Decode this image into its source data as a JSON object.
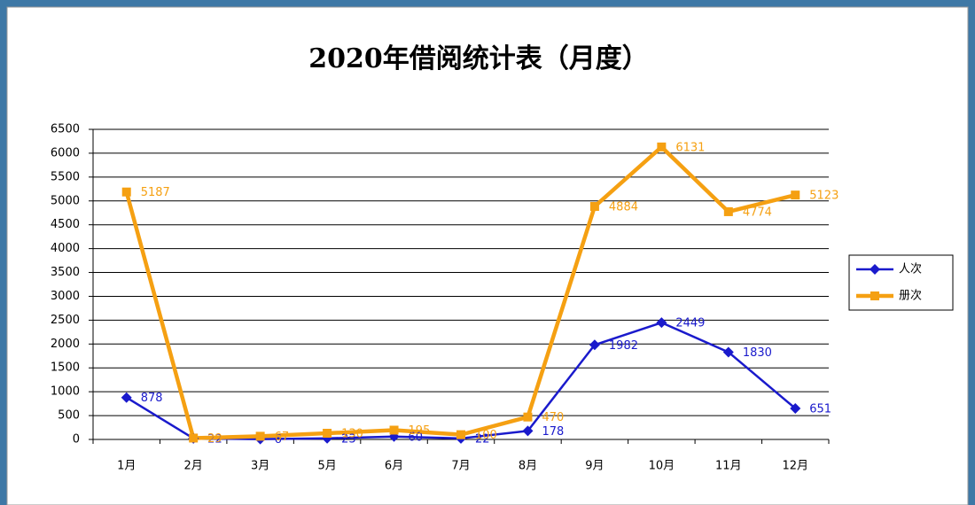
{
  "chart_data": {
    "type": "line",
    "title": "2020年借阅统计表（月度）",
    "categories": [
      "1月",
      "2月",
      "3月",
      "5月",
      "6月",
      "7月",
      "8月",
      "9月",
      "10月",
      "11月",
      "12月"
    ],
    "series": [
      {
        "name": "人次",
        "color": "#1a1acc",
        "values": [
          878,
          22,
          6,
          23,
          60,
          22,
          178,
          1982,
          2449,
          1830,
          651
        ]
      },
      {
        "name": "册次",
        "color": "#f5a012",
        "values": [
          5187,
          29,
          67,
          130,
          195,
          100,
          470,
          4884,
          6131,
          4774,
          5123
        ]
      }
    ],
    "ylim": [
      0,
      6500
    ],
    "yticks": [
      0,
      500,
      1000,
      1500,
      2000,
      2500,
      3000,
      3500,
      4000,
      4500,
      5000,
      5500,
      6000,
      6500
    ],
    "grid": true,
    "legend": "right"
  }
}
